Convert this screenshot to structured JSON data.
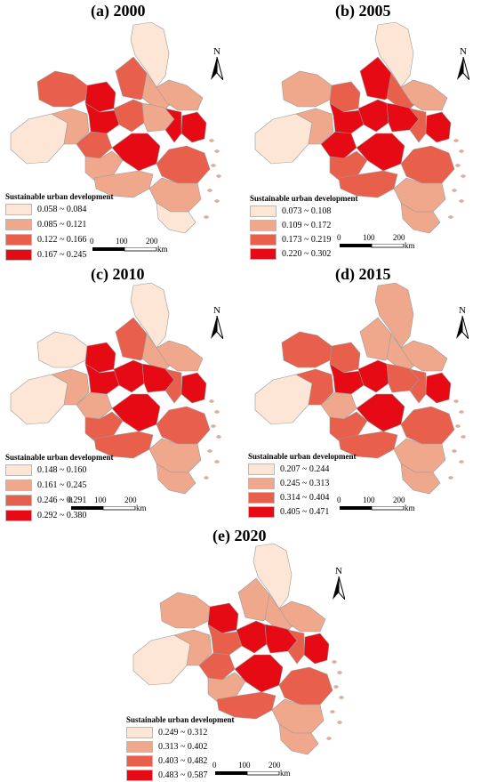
{
  "colors": {
    "c1": "#fde6d6",
    "c2": "#f0a88c",
    "c3": "#e8604c",
    "c4": "#e50a14",
    "border": "#9a9a9a"
  },
  "north_label": "N",
  "scale": {
    "ticks": [
      "0",
      "100",
      "200"
    ],
    "unit": "km"
  },
  "legend_title": "Sustainable urban development",
  "panels": [
    {
      "title": "(a) 2000",
      "legend": [
        "0.058 ~ 0.084",
        "0.085 ~ 0.121",
        "0.122 ~ 0.166",
        "0.167 ~ 0.245"
      ]
    },
    {
      "title": "(b) 2005",
      "legend": [
        "0.073 ~ 0.108",
        "0.109 ~ 0.172",
        "0.173 ~ 0.219",
        "0.220 ~ 0.302"
      ]
    },
    {
      "title": "(c) 2010",
      "legend": [
        "0.148 ~ 0.160",
        "0.161 ~ 0.245",
        "0.246 ~ 0.291",
        "0.292 ~ 0.380"
      ]
    },
    {
      "title": "(d) 2015",
      "legend": [
        "0.207 ~ 0.244",
        "0.245 ~ 0.313",
        "0.314 ~ 0.404",
        "0.405 ~ 0.471"
      ]
    },
    {
      "title": "(e) 2020",
      "legend": [
        "0.249 ~ 0.312",
        "0.313 ~ 0.402",
        "0.403 ~ 0.482",
        "0.483 ~ 0.587"
      ]
    }
  ]
}
